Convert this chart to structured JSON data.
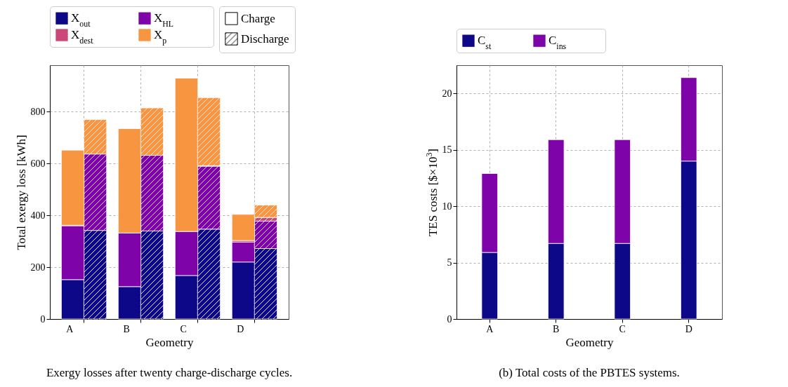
{
  "chart_data": [
    {
      "type": "bar",
      "stacked": true,
      "categories": [
        "A",
        null,
        "B",
        null,
        "C",
        null,
        "D",
        null
      ],
      "xlabel": "Geometry",
      "ylabel": "Total exergy loss [kWh]",
      "ylim": [
        0,
        980
      ],
      "yticks": [
        0,
        200,
        400,
        600,
        800
      ],
      "grid": true,
      "legend": "top",
      "annotations": [
        "Charge",
        "Discharge",
        "Exergy losses after twenty charge-discharge cycles."
      ],
      "series": [
        {
          "name": "X$_{out}$",
          "color": "#0d0887",
          "values": [
            152,
            342,
            125,
            340,
            168,
            347,
            220,
            272
          ]
        },
        {
          "name": "X$_{HL}$",
          "color": "#7e03a8",
          "values": [
            208,
            295,
            207,
            292,
            170,
            243,
            77,
            106
          ]
        },
        {
          "name": "X$_{dest}$",
          "color": "#cc4778",
          "values": [
            2,
            null,
            null,
            null,
            null,
            2,
            6,
            14
          ]
        },
        {
          "name": "X$_{p}$",
          "color": "#f89540",
          "values": [
            290,
            133,
            403,
            183,
            592,
            263,
            101,
            48
          ]
        }
      ]
    },
    {
      "type": "bar",
      "stacked": true,
      "categories": [
        "A",
        "B",
        "C",
        "D"
      ],
      "xlabel": "Geometry",
      "ylabel": "TES costs [$×10$^{3}$]",
      "ylim": [
        0,
        22.5
      ],
      "yticks": [
        0,
        5,
        10,
        15,
        20
      ],
      "grid": true,
      "legend": "top",
      "annotations": [
        "(b) Total costs of the PBTES systems."
      ],
      "series": [
        {
          "name": "C$_{st}$",
          "color": "#0d0887",
          "values": [
            5.9,
            6.7,
            6.7,
            14.0
          ]
        },
        {
          "name": "C$_{ins}$",
          "color": "#7e03a8",
          "values": [
            7.0,
            9.2,
            9.2,
            7.4
          ]
        }
      ]
    }
  ]
}
